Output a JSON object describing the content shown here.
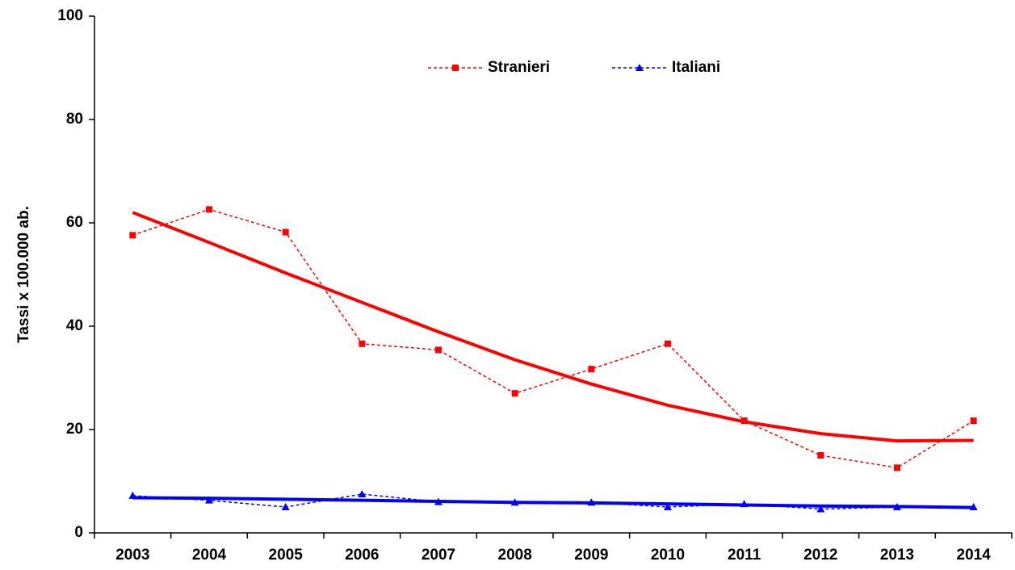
{
  "chart_data": {
    "type": "line",
    "y_label": "Tassi  x 100.000 ab.",
    "categories": [
      "2003",
      "2004",
      "2005",
      "2006",
      "2007",
      "2008",
      "2009",
      "2010",
      "2011",
      "2012",
      "2013",
      "2014"
    ],
    "series": [
      {
        "name": "Stranieri",
        "color": "#ff0000",
        "marker": "square",
        "values": [
          57.6,
          62.6,
          58.2,
          36.6,
          35.4,
          27.0,
          31.7,
          36.6,
          21.7,
          15.0,
          12.6,
          21.7
        ],
        "trend_values": [
          62.0,
          56.2,
          50.3,
          44.6,
          38.9,
          33.5,
          28.8,
          24.7,
          21.5,
          19.2,
          17.8,
          17.9
        ]
      },
      {
        "name": "Italiani",
        "color": "#0000ff",
        "marker": "triangle",
        "values": [
          7.2,
          6.3,
          5.0,
          7.5,
          6.0,
          5.9,
          5.9,
          5.0,
          5.6,
          4.6,
          5.0,
          5.0
        ],
        "trend_values": [
          6.8,
          6.7,
          6.5,
          6.3,
          6.1,
          5.9,
          5.8,
          5.6,
          5.4,
          5.2,
          5.1,
          4.9
        ]
      }
    ],
    "ylim": [
      0,
      100
    ],
    "yticks": [
      0,
      20,
      40,
      60,
      80,
      100
    ],
    "grid": false,
    "legend": "top"
  }
}
